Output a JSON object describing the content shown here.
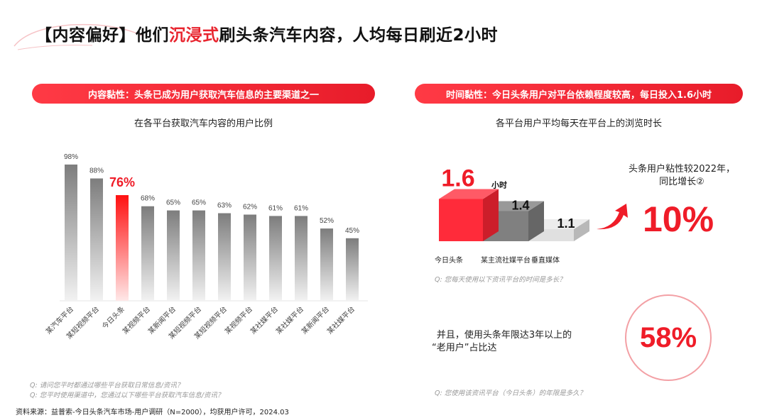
{
  "header": {
    "title_pre": "【内容偏好】他们",
    "title_hl": "沉浸式",
    "title_post": "刷头条汽车内容，人均每日刷近2小时"
  },
  "left": {
    "pill": "内容黏性：头条已成为用户获取汽车信息的主要渠道之一",
    "questions": [
      "Q: 请问您平时都通过哪些平台获取日常信息/资讯？",
      "Q: 您平时使用渠道中，您通过以下哪些平台获取汽车信息/资讯？"
    ]
  },
  "right": {
    "pill": "时间黏性：今日头条用户对平台依赖程度较高，每日投入1.6小时",
    "unit": "小时",
    "growth_text_1": "头条用户粘性较2022年，",
    "growth_text_2": "同比增长②",
    "growth_value": "10%",
    "question1": "Q: 您每天使用以下资讯平台的时间是多长？",
    "old_user_text_1": "并且，使用头条年限达3年以上的",
    "old_user_text_2": "“老用户”占比达",
    "old_user_value": "58%",
    "question2": "Q: 您使用该资讯平台（今日头条）的年限是多久？"
  },
  "source": "资料来源：益普索-今日头条汽车市场-用户调研（N=2000），均获用户许可，2024.03",
  "colors": {
    "accent": "#ef1c28",
    "bar_gray": "#808080"
  },
  "chart_data": [
    {
      "type": "bar",
      "title": "在各平台获取汽车内容的用户比例",
      "categories": [
        "某汽车平台",
        "某短视频平台",
        "今日头条",
        "某视频平台",
        "某新闻平台",
        "某短视频平台",
        "某短视频平台",
        "某视频平台",
        "某社媒平台",
        "某社媒平台",
        "某新闻平台",
        "某社媒平台"
      ],
      "values": [
        98,
        88,
        76,
        68,
        65,
        65,
        63,
        62,
        61,
        61,
        52,
        45
      ],
      "labels": [
        "98%",
        "88%",
        "76%",
        "68%",
        "65%",
        "65%",
        "63%",
        "62%",
        "61%",
        "61%",
        "52%",
        "45%"
      ],
      "highlight_index": 2,
      "ylim": [
        0,
        100
      ],
      "grid": false
    },
    {
      "type": "bar",
      "title": "各平台用户平均每天在平台上的浏览时长",
      "categories": [
        "今日头条",
        "某主流社媒平台",
        "垂直媒体"
      ],
      "values": [
        1.6,
        1.4,
        1.1
      ],
      "labels": [
        "1.6",
        "1.4",
        "1.1"
      ],
      "unit": "小时"
    }
  ]
}
